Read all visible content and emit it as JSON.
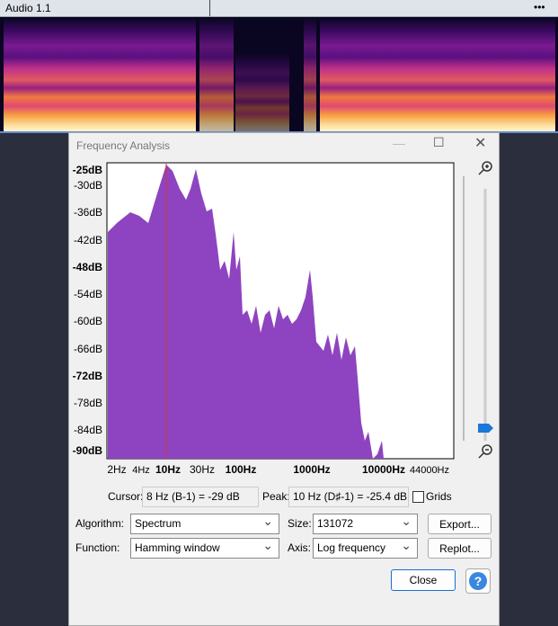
{
  "header": {
    "title": "Audio 1.1",
    "menu": "•••"
  },
  "dialog": {
    "title": "Frequency Analysis",
    "plot": {
      "y_labels": [
        "-25dB",
        "-30dB",
        "-36dB",
        "-42dB",
        "-48dB",
        "-54dB",
        "-60dB",
        "-66dB",
        "-72dB",
        "-78dB",
        "-84dB",
        "-90dB"
      ],
      "x_labels": [
        "2Hz",
        "4Hz",
        "10Hz",
        "30Hz",
        "100Hz",
        "1000Hz",
        "10000Hz",
        "44000Hz"
      ]
    },
    "cursor": {
      "label": "Cursor:",
      "value": "8 Hz (B-1) = -29 dB"
    },
    "peak": {
      "label": "Peak:",
      "value": "10 Hz (D♯-1) = -25.4 dB"
    },
    "grids": "Grids",
    "algorithm": {
      "label": "Algorithm:",
      "value": "Spectrum"
    },
    "size": {
      "label": "Size:",
      "value": "131072"
    },
    "export": "Export...",
    "function": {
      "label": "Function:",
      "value": "Hamming window"
    },
    "axis": {
      "label": "Axis:",
      "value": "Log frequency"
    },
    "replot": "Replot...",
    "close": "Close",
    "help": "?"
  }
}
